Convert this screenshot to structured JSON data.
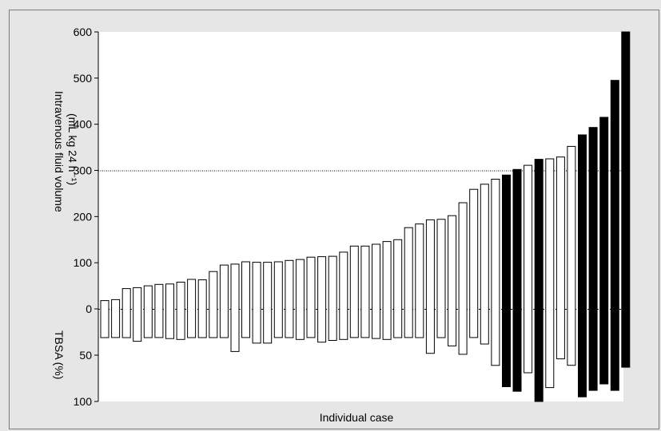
{
  "chart_data": {
    "type": "bar",
    "title": "",
    "xlabel": "Individual case",
    "ylabel_top": [
      "Intravenous fluid volume",
      "(mL kg 24 h⁻¹)"
    ],
    "ylabel_bottom": "TBSA (%)",
    "y_top_ticks": [
      0,
      100,
      200,
      300,
      400,
      500,
      600
    ],
    "y_bottom_ticks": [
      0,
      50,
      100
    ],
    "y_top_range": [
      0,
      600
    ],
    "y_bottom_range": [
      0,
      100
    ],
    "reference_line": 300,
    "colors": {
      "open": "#ffffff",
      "filled": "#000000"
    },
    "cases": [
      {
        "volume": 18,
        "tbsa": 31,
        "filled": false
      },
      {
        "volume": 20,
        "tbsa": 31,
        "filled": false
      },
      {
        "volume": 44,
        "tbsa": 31,
        "filled": false
      },
      {
        "volume": 46,
        "tbsa": 35,
        "filled": false
      },
      {
        "volume": 50,
        "tbsa": 31,
        "filled": false
      },
      {
        "volume": 53,
        "tbsa": 31,
        "filled": false
      },
      {
        "volume": 54,
        "tbsa": 32,
        "filled": false
      },
      {
        "volume": 58,
        "tbsa": 33,
        "filled": false
      },
      {
        "volume": 64,
        "tbsa": 31,
        "filled": false
      },
      {
        "volume": 63,
        "tbsa": 31,
        "filled": false
      },
      {
        "volume": 81,
        "tbsa": 31,
        "filled": false
      },
      {
        "volume": 95,
        "tbsa": 31,
        "filled": false
      },
      {
        "volume": 97,
        "tbsa": 46,
        "filled": false
      },
      {
        "volume": 102,
        "tbsa": 31,
        "filled": false
      },
      {
        "volume": 101,
        "tbsa": 37,
        "filled": false
      },
      {
        "volume": 101,
        "tbsa": 37,
        "filled": false
      },
      {
        "volume": 102,
        "tbsa": 31,
        "filled": false
      },
      {
        "volume": 105,
        "tbsa": 31,
        "filled": false
      },
      {
        "volume": 107,
        "tbsa": 33,
        "filled": false
      },
      {
        "volume": 112,
        "tbsa": 31,
        "filled": false
      },
      {
        "volume": 113,
        "tbsa": 36,
        "filled": false
      },
      {
        "volume": 114,
        "tbsa": 34,
        "filled": false
      },
      {
        "volume": 123,
        "tbsa": 33,
        "filled": false
      },
      {
        "volume": 136,
        "tbsa": 31,
        "filled": false
      },
      {
        "volume": 136,
        "tbsa": 31,
        "filled": false
      },
      {
        "volume": 140,
        "tbsa": 32,
        "filled": false
      },
      {
        "volume": 146,
        "tbsa": 33,
        "filled": false
      },
      {
        "volume": 150,
        "tbsa": 31,
        "filled": false
      },
      {
        "volume": 176,
        "tbsa": 31,
        "filled": false
      },
      {
        "volume": 184,
        "tbsa": 31,
        "filled": false
      },
      {
        "volume": 193,
        "tbsa": 48,
        "filled": false
      },
      {
        "volume": 194,
        "tbsa": 31,
        "filled": false
      },
      {
        "volume": 202,
        "tbsa": 40,
        "filled": false
      },
      {
        "volume": 230,
        "tbsa": 49,
        "filled": false
      },
      {
        "volume": 259,
        "tbsa": 31,
        "filled": false
      },
      {
        "volume": 270,
        "tbsa": 38,
        "filled": false
      },
      {
        "volume": 281,
        "tbsa": 61,
        "filled": false
      },
      {
        "volume": 290,
        "tbsa": 84,
        "filled": true
      },
      {
        "volume": 302,
        "tbsa": 89,
        "filled": true
      },
      {
        "volume": 311,
        "tbsa": 69,
        "filled": false
      },
      {
        "volume": 324,
        "tbsa": 100,
        "filled": true
      },
      {
        "volume": 325,
        "tbsa": 85,
        "filled": false
      },
      {
        "volume": 329,
        "tbsa": 54,
        "filled": false
      },
      {
        "volume": 352,
        "tbsa": 61,
        "filled": false
      },
      {
        "volume": 377,
        "tbsa": 95,
        "filled": true
      },
      {
        "volume": 393,
        "tbsa": 88,
        "filled": true
      },
      {
        "volume": 415,
        "tbsa": 81,
        "filled": true
      },
      {
        "volume": 495,
        "tbsa": 88,
        "filled": true
      },
      {
        "volume": 600,
        "tbsa": 63,
        "filled": true
      }
    ]
  }
}
